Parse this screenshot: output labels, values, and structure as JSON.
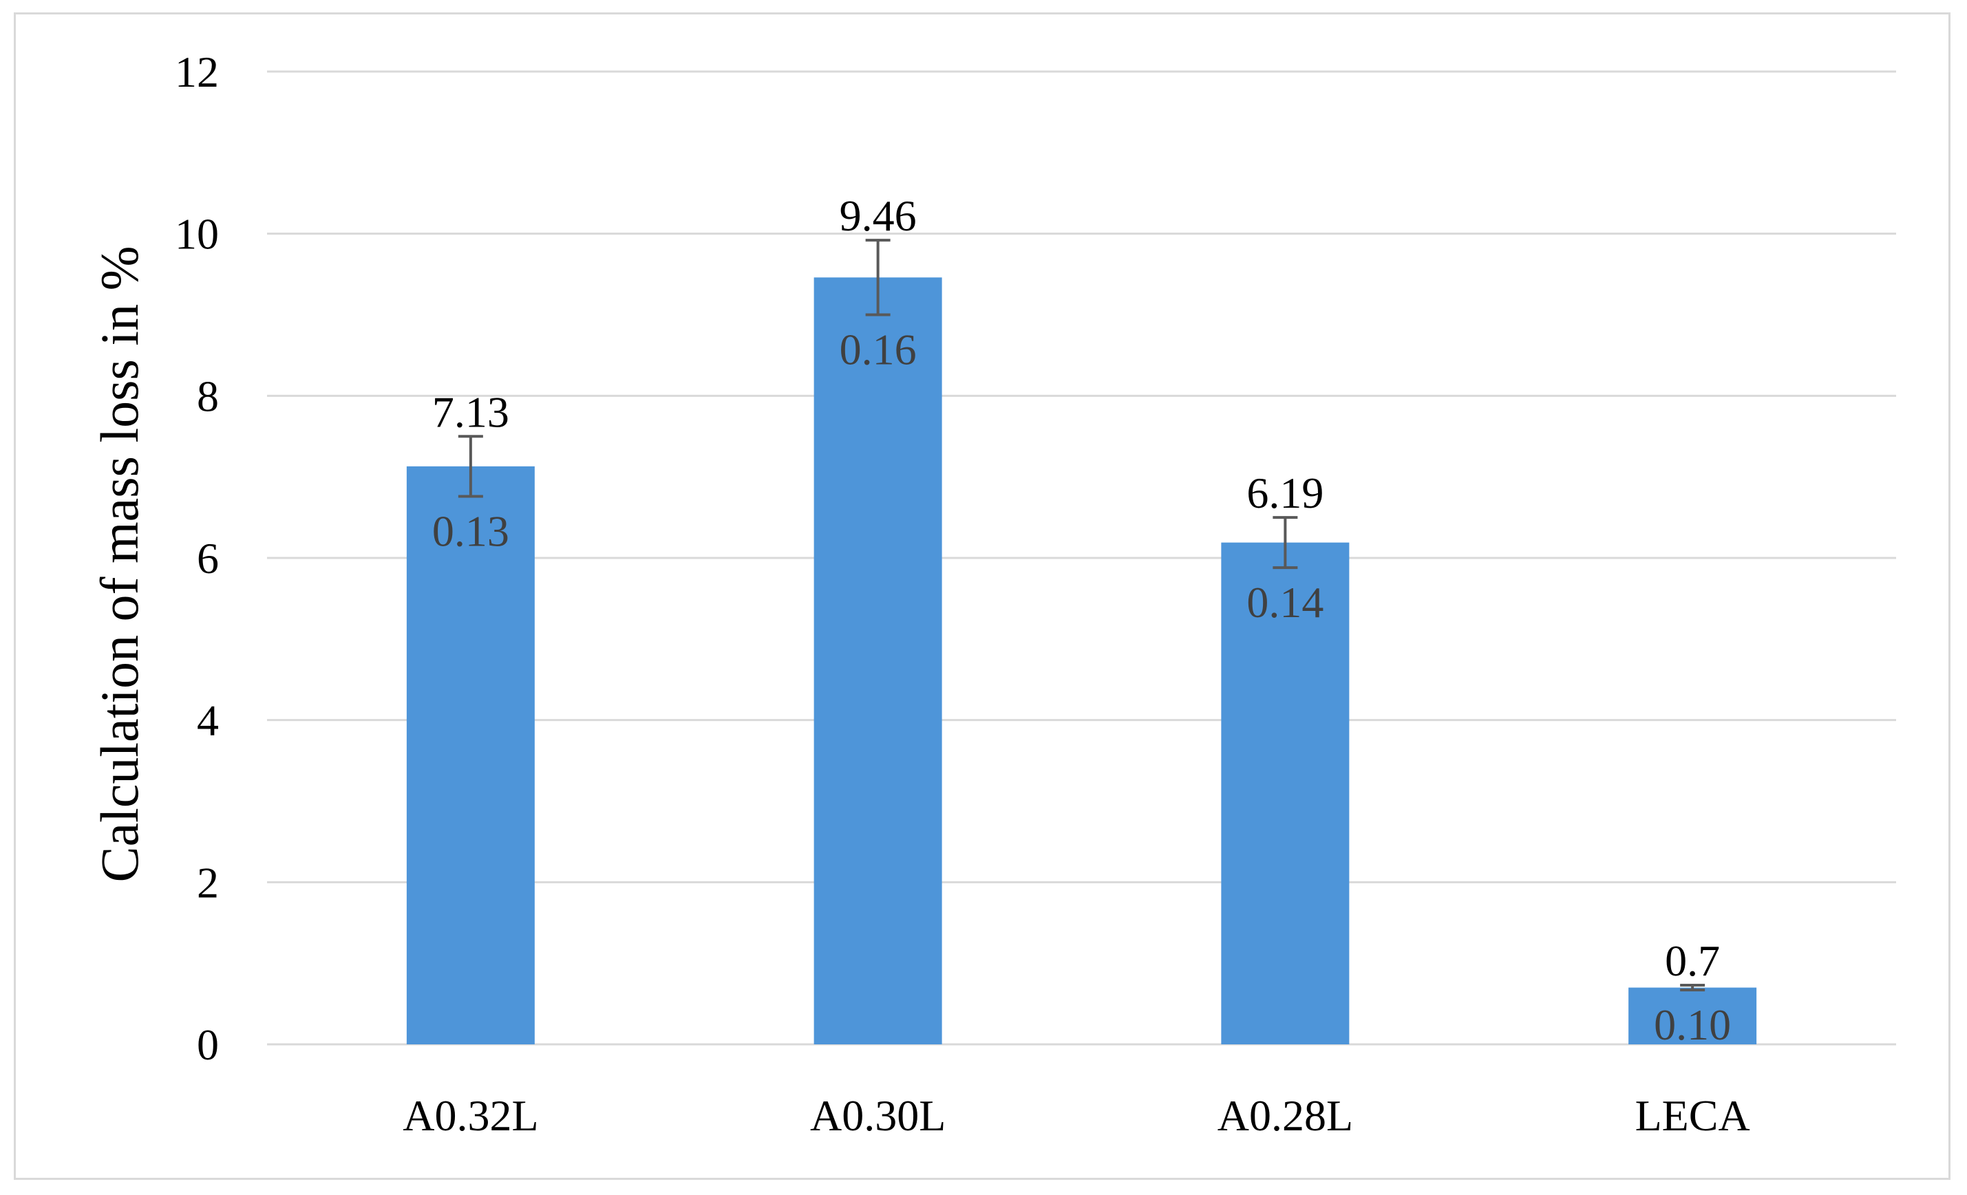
{
  "chart_data": {
    "type": "bar",
    "title": "",
    "xlabel": "",
    "ylabel": "Calculation of mass loss in %",
    "categories": [
      "A0.32L",
      "A0.30L",
      "A0.28L",
      "LECA"
    ],
    "values": [
      7.13,
      9.46,
      6.19,
      0.7
    ],
    "value_labels": [
      "7.13",
      "9.46",
      "6.19",
      "0.7"
    ],
    "errors": [
      0.37,
      0.46,
      0.31,
      0.03
    ],
    "inner_labels": [
      "0.13",
      "0.16",
      "0.14",
      "0.10"
    ],
    "ylim": [
      0,
      12
    ],
    "yticks": [
      "0",
      "2",
      "4",
      "6",
      "8",
      "10",
      "12"
    ],
    "grid": true,
    "legend": "none",
    "colors": {
      "bar": "#4e95d9",
      "grid": "#d9d9d9",
      "error_bar": "#595959"
    }
  }
}
